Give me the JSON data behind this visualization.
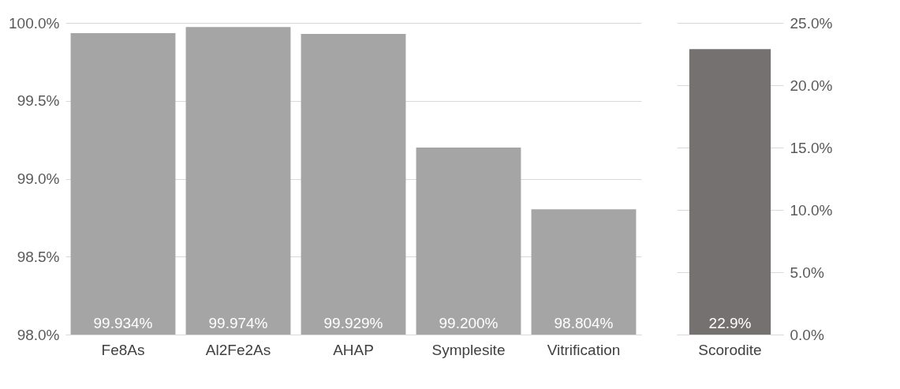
{
  "chart_data": [
    {
      "type": "bar",
      "categories": [
        "Fe8As",
        "Al2Fe2As",
        "AHAP",
        "Symplesite",
        "Vitrification"
      ],
      "series": [
        {
          "color": "#a5a5a5",
          "values": [
            99.934,
            99.974,
            99.929,
            99.2,
            98.804
          ],
          "value_labels": [
            "99.934%",
            "99.974%",
            "99.929%",
            "99.200%",
            "98.804%"
          ]
        }
      ],
      "ylim": [
        98,
        100
      ],
      "yticks": [
        {
          "value": 98,
          "label": "98.0%"
        },
        {
          "value": 98.5,
          "label": "98.5%"
        },
        {
          "value": 99,
          "label": "99.0%"
        },
        {
          "value": 99.5,
          "label": "99.5%"
        },
        {
          "value": 100,
          "label": "100.0%"
        }
      ],
      "grid": "y"
    },
    {
      "type": "bar",
      "categories": [
        "Scorodite"
      ],
      "series": [
        {
          "color": "#767171",
          "values": [
            22.9
          ],
          "value_labels": [
            "22.9%"
          ]
        }
      ],
      "ylim": [
        0,
        25
      ],
      "yticks": [
        {
          "value": 0,
          "label": "0.0%"
        },
        {
          "value": 5,
          "label": "5.0%"
        },
        {
          "value": 10,
          "label": "10.0%"
        },
        {
          "value": 15,
          "label": "15.0%"
        },
        {
          "value": 20,
          "label": "20.0%"
        },
        {
          "value": 25,
          "label": "25.0%"
        }
      ],
      "grid": "y"
    }
  ]
}
